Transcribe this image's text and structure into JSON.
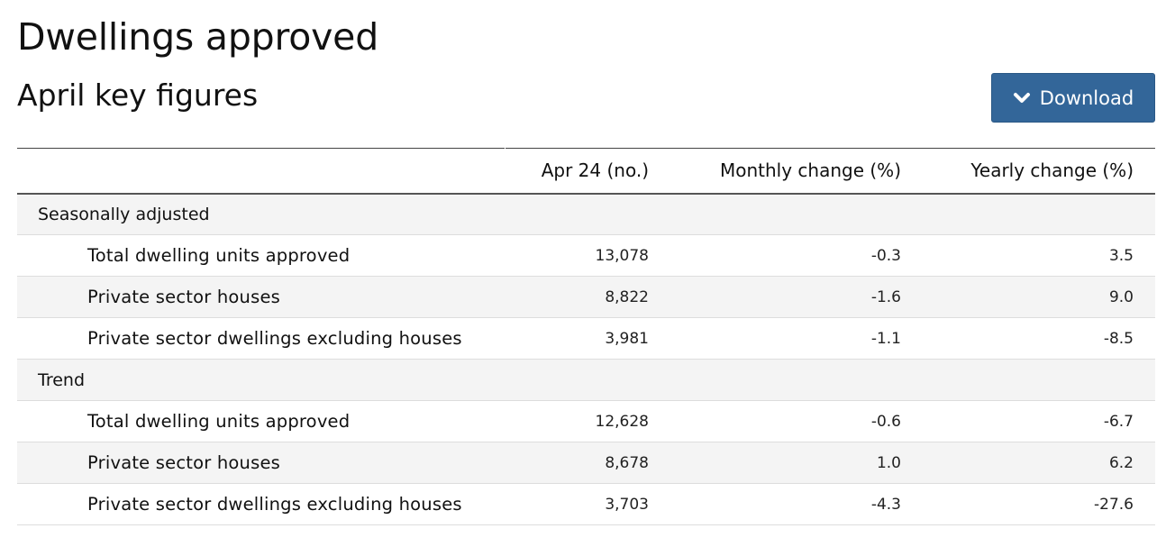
{
  "title": "Dwellings approved",
  "subtitle": "April key figures",
  "download": {
    "label": "Download",
    "button_color": "#336699"
  },
  "table": {
    "headers": [
      "",
      "Apr 24 (no.)",
      "Monthly change (%)",
      "Yearly change (%)"
    ],
    "groups": [
      {
        "label": "Seasonally adjusted",
        "rows": [
          {
            "label": "Total dwelling units approved",
            "value": "13,078",
            "monthly": "-0.3",
            "yearly": "3.5"
          },
          {
            "label": "Private sector houses",
            "value": "8,822",
            "monthly": "-1.6",
            "yearly": "9.0"
          },
          {
            "label": "Private sector dwellings excluding houses",
            "value": "3,981",
            "monthly": "-1.1",
            "yearly": "-8.5"
          }
        ]
      },
      {
        "label": "Trend",
        "rows": [
          {
            "label": "Total dwelling units approved",
            "value": "12,628",
            "monthly": "-0.6",
            "yearly": "-6.7"
          },
          {
            "label": "Private sector houses",
            "value": "8,678",
            "monthly": "1.0",
            "yearly": "6.2"
          },
          {
            "label": "Private sector dwellings excluding houses",
            "value": "3,703",
            "monthly": "-4.3",
            "yearly": "-27.6"
          }
        ]
      }
    ]
  }
}
